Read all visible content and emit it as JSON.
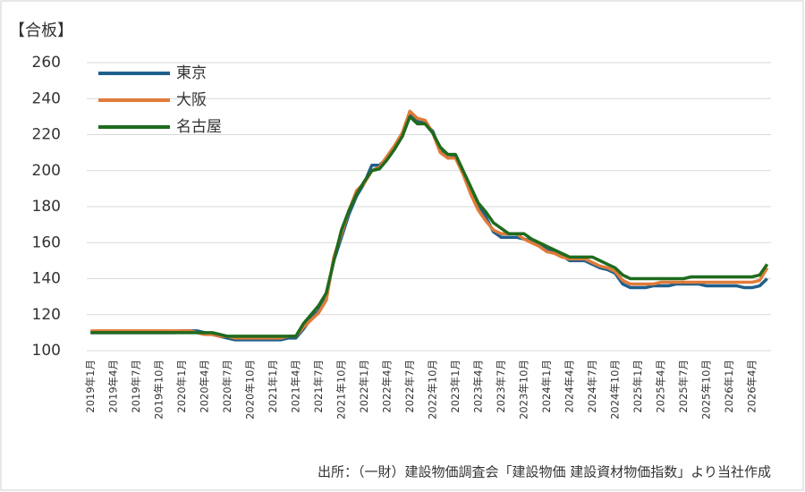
{
  "chart_data": {
    "type": "line",
    "title": "【合板】",
    "source": "出所：（一財）建設物価調査会「建設物価 建設資材物価指数」より当社作成",
    "categories": [
      "2019年1月",
      null,
      null,
      "2019年4月",
      null,
      null,
      "2019年7月",
      null,
      null,
      "2019年10月",
      null,
      null,
      "2020年1月",
      null,
      null,
      "2020年4月",
      null,
      null,
      "2020年7月",
      null,
      null,
      "2020年10月",
      null,
      null,
      "2021年1月",
      null,
      null,
      "2021年4月",
      null,
      null,
      "2021年7月",
      null,
      null,
      "2021年10月",
      null,
      null,
      "2022年1月",
      null,
      null,
      "2022年4月",
      null,
      null,
      "2022年7月",
      null,
      null,
      "2022年10月",
      null,
      null,
      "2023年1月",
      null,
      null,
      "2023年4月",
      null,
      null,
      "2023年7月",
      null,
      null,
      "2023年10月",
      null,
      null,
      "2024年1月",
      null,
      null,
      "2024年4月",
      null,
      null,
      "2024年7月",
      null,
      null,
      "2024年10月",
      null,
      null,
      "2025年1月",
      null,
      null,
      "2025年4月",
      null,
      null,
      "2025年7月",
      null,
      null,
      "2025年10月",
      null,
      null,
      "2026年1月",
      null,
      null,
      "2026年4月",
      null,
      null
    ],
    "series": [
      {
        "name": "東京",
        "color": "#1f5f8b",
        "values": [
          110,
          110,
          110,
          110,
          110,
          110,
          110,
          110,
          110,
          110,
          110,
          110,
          111,
          111,
          111,
          110,
          109,
          108,
          107,
          106,
          106,
          106,
          106,
          106,
          106,
          106,
          107,
          107,
          112,
          118,
          122,
          131,
          150,
          163,
          176,
          186,
          193,
          203,
          203,
          207,
          213,
          219,
          231,
          228,
          226,
          222,
          211,
          207,
          208,
          199,
          189,
          180,
          174,
          166,
          163,
          163,
          163,
          162,
          161,
          159,
          156,
          155,
          153,
          150,
          150,
          150,
          148,
          146,
          145,
          143,
          137,
          135,
          135,
          135,
          136,
          136,
          136,
          137,
          137,
          137,
          137,
          136,
          136,
          136,
          136,
          136,
          135,
          135,
          136,
          140
        ]
      },
      {
        "name": "大阪",
        "color": "#e07b39",
        "values": [
          111,
          111,
          111,
          111,
          111,
          111,
          111,
          111,
          111,
          111,
          111,
          111,
          111,
          111,
          110,
          109,
          109,
          108,
          108,
          107,
          107,
          107,
          107,
          107,
          107,
          107,
          108,
          108,
          113,
          117,
          121,
          128,
          152,
          165,
          178,
          189,
          193,
          200,
          202,
          208,
          214,
          221,
          233,
          229,
          228,
          221,
          210,
          207,
          207,
          198,
          187,
          178,
          172,
          167,
          165,
          165,
          165,
          162,
          160,
          158,
          155,
          154,
          152,
          151,
          151,
          151,
          149,
          147,
          146,
          144,
          139,
          137,
          137,
          137,
          137,
          138,
          138,
          138,
          138,
          138,
          138,
          138,
          138,
          138,
          138,
          138,
          138,
          138,
          139,
          146
        ]
      },
      {
        "name": "名古屋",
        "color": "#1e6b1e",
        "values": [
          110,
          110,
          110,
          110,
          110,
          110,
          110,
          110,
          110,
          110,
          110,
          110,
          110,
          110,
          110,
          110,
          110,
          109,
          108,
          108,
          108,
          108,
          108,
          108,
          108,
          108,
          108,
          108,
          115,
          120,
          125,
          132,
          150,
          167,
          178,
          187,
          194,
          200,
          201,
          206,
          212,
          219,
          230,
          226,
          226,
          221,
          213,
          209,
          209,
          200,
          191,
          182,
          177,
          171,
          168,
          165,
          165,
          165,
          162,
          160,
          158,
          156,
          154,
          152,
          152,
          152,
          152,
          150,
          148,
          146,
          142,
          140,
          140,
          140,
          140,
          140,
          140,
          140,
          140,
          141,
          141,
          141,
          141,
          141,
          141,
          141,
          141,
          141,
          142,
          148
        ]
      }
    ],
    "ylim": [
      100,
      260
    ],
    "yticks": [
      100,
      120,
      140,
      160,
      180,
      200,
      220,
      240,
      260
    ],
    "grid": true,
    "legend": "upper left"
  }
}
